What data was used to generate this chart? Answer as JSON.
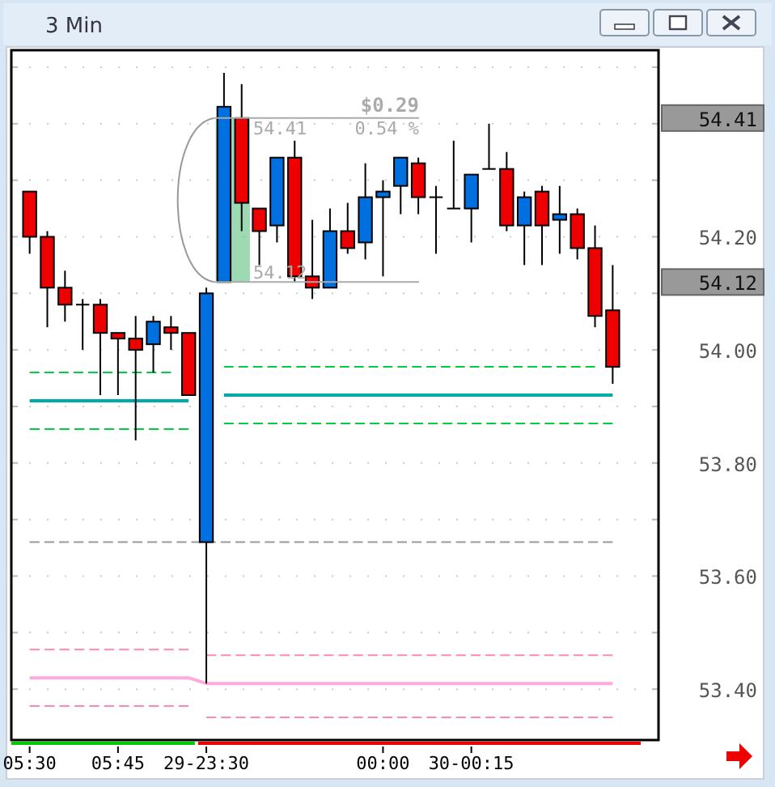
{
  "chart_data": {
    "type": "candlestick",
    "title": "3 Min",
    "categories": [
      "05:30",
      null,
      null,
      null,
      null,
      "05:45",
      null,
      null,
      null,
      null,
      "29-23:30",
      null,
      null,
      null,
      null,
      null,
      null,
      null,
      null,
      null,
      "00:00",
      null,
      null,
      null,
      null,
      "30-00:15",
      null,
      null,
      null,
      null,
      null,
      null,
      null,
      null
    ],
    "ohlc": [
      [
        54.28,
        54.28,
        54.17,
        54.2
      ],
      [
        54.2,
        54.21,
        54.04,
        54.11
      ],
      [
        54.11,
        54.14,
        54.05,
        54.08
      ],
      [
        54.08,
        54.09,
        54.0,
        54.08
      ],
      [
        54.08,
        54.09,
        53.92,
        54.03
      ],
      [
        54.03,
        54.03,
        53.92,
        54.02
      ],
      [
        54.02,
        54.06,
        53.84,
        54.0
      ],
      [
        54.01,
        54.06,
        53.96,
        54.05
      ],
      [
        54.04,
        54.06,
        54.0,
        54.03
      ],
      [
        54.03,
        54.03,
        53.92,
        53.92
      ],
      [
        53.66,
        54.11,
        53.41,
        54.1
      ],
      [
        54.12,
        54.49,
        54.12,
        54.43
      ],
      [
        54.41,
        54.47,
        54.21,
        54.26
      ],
      [
        54.25,
        54.25,
        54.15,
        54.21
      ],
      [
        54.22,
        54.34,
        54.19,
        54.34
      ],
      [
        54.34,
        54.37,
        54.12,
        54.13
      ],
      [
        54.13,
        54.23,
        54.09,
        54.11
      ],
      [
        54.11,
        54.25,
        54.11,
        54.21
      ],
      [
        54.21,
        54.26,
        54.17,
        54.18
      ],
      [
        54.19,
        54.33,
        54.16,
        54.27
      ],
      [
        54.27,
        54.3,
        54.13,
        54.28
      ],
      [
        54.29,
        54.34,
        54.24,
        54.34
      ],
      [
        54.33,
        54.34,
        54.24,
        54.27
      ],
      [
        54.27,
        54.29,
        54.17,
        54.27
      ],
      [
        54.25,
        54.37,
        54.25,
        54.25
      ],
      [
        54.25,
        54.31,
        54.19,
        54.31
      ],
      [
        54.32,
        54.4,
        54.32,
        54.32
      ],
      [
        54.32,
        54.35,
        54.21,
        54.22
      ],
      [
        54.22,
        54.28,
        54.15,
        54.27
      ],
      [
        54.28,
        54.29,
        54.15,
        54.22
      ],
      [
        54.23,
        54.29,
        54.17,
        54.24
      ],
      [
        54.24,
        54.25,
        54.16,
        54.18
      ],
      [
        54.18,
        54.22,
        54.04,
        54.06
      ],
      [
        54.07,
        54.15,
        53.94,
        53.97
      ]
    ],
    "series": [
      {
        "type": "line",
        "color": "#00aaaa",
        "line_style": "solid",
        "values": [
          53.91,
          53.91,
          53.91,
          53.91,
          53.91,
          53.91,
          53.91,
          53.91,
          53.91,
          53.91,
          null,
          53.92,
          53.92,
          53.92,
          53.92,
          53.92,
          53.92,
          53.92,
          53.92,
          53.92,
          53.92,
          53.92,
          53.92,
          53.92,
          53.92,
          53.92,
          53.92,
          53.92,
          53.92,
          53.92,
          53.92,
          53.92,
          53.92,
          53.92
        ]
      },
      {
        "type": "line",
        "color": "#ffaadd",
        "line_style": "solid",
        "values": [
          53.42,
          53.42,
          53.42,
          53.42,
          53.42,
          53.42,
          53.42,
          53.42,
          53.42,
          53.42,
          53.41,
          53.41,
          53.41,
          53.41,
          53.41,
          53.41,
          53.41,
          53.41,
          53.41,
          53.41,
          53.41,
          53.41,
          53.41,
          53.41,
          53.41,
          53.41,
          53.41,
          53.41,
          53.41,
          53.41,
          53.41,
          53.41,
          53.41,
          53.41
        ]
      },
      {
        "type": "line",
        "color": "#999999",
        "line_style": "dashed",
        "values": [
          53.66,
          53.66,
          53.66,
          53.66,
          53.66,
          53.66,
          53.66,
          53.66,
          53.66,
          53.66,
          53.66,
          53.66,
          53.66,
          53.66,
          53.66,
          53.66,
          53.66,
          53.66,
          53.66,
          53.66,
          53.66,
          53.66,
          53.66,
          53.66,
          53.66,
          53.66,
          53.66,
          53.66,
          53.66,
          53.66,
          53.66,
          53.66,
          53.66,
          53.66
        ]
      },
      {
        "type": "line",
        "color": "#00cc44",
        "line_style": "dashed",
        "values": [
          53.96,
          53.96,
          53.96,
          53.96,
          53.96,
          53.96,
          53.96,
          53.96,
          53.96,
          null,
          null,
          null,
          null,
          null,
          null,
          null,
          null,
          null,
          null,
          null,
          null,
          null,
          null,
          null,
          null,
          null,
          null,
          null,
          null,
          null,
          null,
          null,
          null,
          null
        ]
      },
      {
        "type": "line",
        "color": "#00cc44",
        "line_style": "dashed",
        "values": [
          null,
          null,
          null,
          null,
          null,
          null,
          null,
          null,
          null,
          null,
          null,
          53.97,
          53.97,
          53.97,
          53.97,
          53.97,
          53.97,
          53.97,
          53.97,
          53.97,
          53.97,
          53.97,
          53.97,
          53.97,
          53.97,
          53.97,
          53.97,
          53.97,
          53.97,
          53.97,
          53.97,
          53.97,
          53.97,
          null
        ]
      },
      {
        "type": "line",
        "color": "#00cc44",
        "line_style": "dashed",
        "values": [
          53.86,
          53.86,
          53.86,
          53.86,
          53.86,
          53.86,
          53.86,
          53.86,
          53.86,
          53.86,
          null,
          null,
          null,
          null,
          null,
          null,
          null,
          null,
          null,
          null,
          null,
          null,
          null,
          null,
          null,
          null,
          null,
          null,
          null,
          null,
          null,
          null,
          null,
          null
        ]
      },
      {
        "type": "line",
        "color": "#00cc44",
        "line_style": "dashed",
        "values": [
          null,
          null,
          null,
          null,
          null,
          null,
          null,
          null,
          null,
          null,
          null,
          53.87,
          53.87,
          53.87,
          53.87,
          53.87,
          53.87,
          53.87,
          53.87,
          53.87,
          53.87,
          53.87,
          53.87,
          53.87,
          53.87,
          53.87,
          53.87,
          53.87,
          53.87,
          53.87,
          53.87,
          53.87,
          53.87,
          53.87
        ]
      },
      {
        "type": "line",
        "color": "#ff88bb",
        "line_style": "dashed",
        "values": [
          53.47,
          53.47,
          53.47,
          53.47,
          53.47,
          53.47,
          53.47,
          53.47,
          53.47,
          53.47,
          null,
          null,
          null,
          null,
          null,
          null,
          null,
          null,
          null,
          null,
          null,
          null,
          null,
          null,
          null,
          null,
          null,
          null,
          null,
          null,
          null,
          null,
          null,
          null
        ]
      },
      {
        "type": "line",
        "color": "#ff88bb",
        "line_style": "dashed",
        "values": [
          null,
          null,
          null,
          null,
          null,
          null,
          null,
          null,
          null,
          null,
          53.46,
          53.46,
          53.46,
          53.46,
          53.46,
          53.46,
          53.46,
          53.46,
          53.46,
          53.46,
          53.46,
          53.46,
          53.46,
          53.46,
          53.46,
          53.46,
          53.46,
          53.46,
          53.46,
          53.46,
          53.46,
          53.46,
          53.46,
          53.46
        ]
      },
      {
        "type": "line",
        "color": "#ff88bb",
        "line_style": "dashed",
        "values": [
          53.37,
          53.37,
          53.37,
          53.37,
          53.37,
          53.37,
          53.37,
          53.37,
          53.37,
          53.37,
          null,
          null,
          null,
          null,
          null,
          null,
          null,
          null,
          null,
          null,
          null,
          null,
          null,
          null,
          null,
          null,
          null,
          null,
          null,
          null,
          null,
          null,
          null,
          null
        ]
      },
      {
        "type": "line",
        "color": "#ff88bb",
        "line_style": "dashed",
        "values": [
          null,
          null,
          null,
          null,
          null,
          null,
          null,
          null,
          null,
          null,
          53.35,
          53.35,
          53.35,
          53.35,
          53.35,
          53.35,
          53.35,
          53.35,
          53.35,
          53.35,
          53.35,
          53.35,
          53.35,
          53.35,
          53.35,
          53.35,
          53.35,
          53.35,
          53.35,
          53.35,
          53.35,
          53.35,
          53.35,
          53.35
        ]
      }
    ],
    "ylim": [
      53.31,
      54.53
    ],
    "yticks": [
      {
        "value": 53.4,
        "label": "53.40"
      },
      {
        "value": 53.5,
        "label": null
      },
      {
        "value": 53.6,
        "label": "53.60"
      },
      {
        "value": 53.7,
        "label": null
      },
      {
        "value": 53.8,
        "label": "53.80"
      },
      {
        "value": 53.9,
        "label": null
      },
      {
        "value": 54.0,
        "label": "54.00"
      },
      {
        "value": 54.1,
        "label": null
      },
      {
        "value": 54.2,
        "label": "54.20"
      },
      {
        "value": 54.3,
        "label": null
      },
      {
        "value": 54.4,
        "label": null
      },
      {
        "value": 54.5,
        "label": null
      }
    ],
    "grid": "y",
    "ref_lines": [
      {
        "axis": "y",
        "value": 54.41,
        "label": "54.41",
        "color": "#aaaaaa"
      },
      {
        "axis": "y",
        "value": 54.12,
        "label": "54.12",
        "color": "#aaaaaa"
      }
    ],
    "annotations": [
      "$0.29",
      "0.54 %"
    ]
  }
}
